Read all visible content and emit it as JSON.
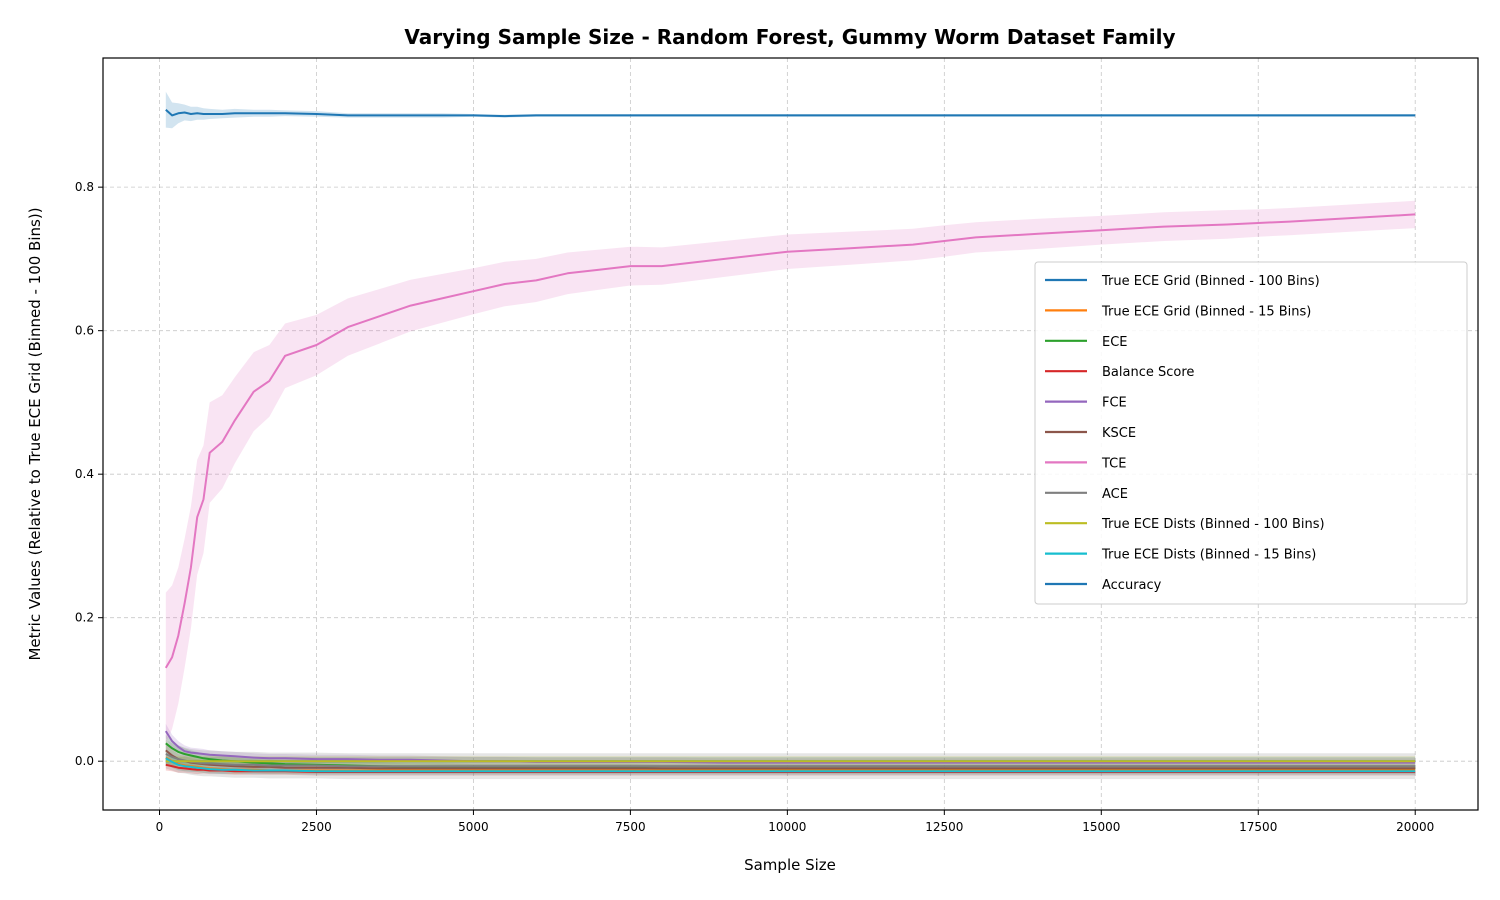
{
  "chart_data": {
    "type": "line",
    "title": "Varying Sample Size - Random Forest, Gummy Worm Dataset Family",
    "xlabel": "Sample Size",
    "ylabel": "Metric Values (Relative to True ECE Grid (Binned - 100 Bins))",
    "xlim": [
      -900,
      21000
    ],
    "ylim": [
      -0.068,
      0.98
    ],
    "xticks": [
      0,
      2500,
      5000,
      7500,
      10000,
      12500,
      15000,
      17500,
      20000
    ],
    "xtick_labels": [
      "0",
      "2500",
      "5000",
      "7500",
      "10000",
      "12500",
      "15000",
      "17500",
      "20000"
    ],
    "yticks": [
      0.0,
      0.2,
      0.4,
      0.6,
      0.8
    ],
    "ytick_labels": [
      "0.0",
      "0.2",
      "0.4",
      "0.6",
      "0.8"
    ],
    "grid": true,
    "legend_position": "center-right",
    "x": [
      100,
      200,
      300,
      400,
      500,
      600,
      700,
      800,
      1000,
      1200,
      1500,
      1750,
      2000,
      2500,
      3000,
      3500,
      4000,
      4500,
      5000,
      5500,
      6000,
      6500,
      7000,
      7500,
      8000,
      9000,
      10000,
      11000,
      12000,
      12500,
      13000,
      14000,
      15000,
      16000,
      17000,
      17500,
      18000,
      19000,
      20000
    ],
    "series": [
      {
        "name": "True ECE Grid (Binned - 100 Bins)",
        "color": "#1f77b4",
        "values": [
          0,
          0,
          0,
          0,
          0,
          0,
          0,
          0,
          0,
          0,
          0,
          0,
          0,
          0,
          0,
          0,
          0,
          0,
          0,
          0,
          0,
          0,
          0,
          0,
          0,
          0,
          0,
          0,
          0,
          0,
          0,
          0,
          0,
          0,
          0,
          0,
          0,
          0,
          0
        ],
        "band": [
          0.006,
          0.006,
          0.006,
          0.006,
          0.006,
          0.006,
          0.006,
          0.006,
          0.006,
          0.006,
          0.006,
          0.006,
          0.006,
          0.006,
          0.006,
          0.006,
          0.006,
          0.006,
          0.006,
          0.006,
          0.006,
          0.006,
          0.006,
          0.006,
          0.006,
          0.006,
          0.006,
          0.006,
          0.006,
          0.006,
          0.006,
          0.006,
          0.006,
          0.006,
          0.006,
          0.006,
          0.006,
          0.006,
          0.006
        ]
      },
      {
        "name": "True ECE Grid (Binned - 15 Bins)",
        "color": "#ff7f0e",
        "values": [
          0.005,
          0.0,
          -0.004,
          -0.006,
          -0.007,
          -0.008,
          -0.009,
          -0.01,
          -0.011,
          -0.012,
          -0.012,
          -0.013,
          -0.013,
          -0.013,
          -0.013,
          -0.013,
          -0.013,
          -0.013,
          -0.013,
          -0.013,
          -0.013,
          -0.013,
          -0.013,
          -0.013,
          -0.013,
          -0.013,
          -0.013,
          -0.013,
          -0.013,
          -0.013,
          -0.013,
          -0.013,
          -0.013,
          -0.013,
          -0.013,
          -0.013,
          -0.013,
          -0.013,
          -0.013
        ],
        "band": [
          0.01,
          0.009,
          0.008,
          0.008,
          0.007,
          0.007,
          0.007,
          0.006,
          0.006,
          0.006,
          0.005,
          0.005,
          0.005,
          0.005,
          0.005,
          0.005,
          0.005,
          0.005,
          0.005,
          0.005,
          0.005,
          0.005,
          0.005,
          0.005,
          0.005,
          0.005,
          0.005,
          0.005,
          0.005,
          0.005,
          0.005,
          0.005,
          0.005,
          0.005,
          0.005,
          0.005,
          0.005,
          0.005,
          0.005
        ]
      },
      {
        "name": "ECE",
        "color": "#2ca02c",
        "values": [
          0.025,
          0.018,
          0.013,
          0.01,
          0.008,
          0.006,
          0.004,
          0.003,
          0.001,
          0.0,
          -0.002,
          -0.003,
          -0.004,
          -0.005,
          -0.006,
          -0.007,
          -0.008,
          -0.008,
          -0.009,
          -0.009,
          -0.009,
          -0.009,
          -0.009,
          -0.009,
          -0.01,
          -0.01,
          -0.01,
          -0.01,
          -0.01,
          -0.01,
          -0.01,
          -0.01,
          -0.01,
          -0.01,
          -0.01,
          -0.01,
          -0.01,
          -0.01,
          -0.01
        ],
        "band": [
          0.012,
          0.01,
          0.009,
          0.008,
          0.007,
          0.007,
          0.006,
          0.006,
          0.006,
          0.005,
          0.005,
          0.005,
          0.005,
          0.005,
          0.005,
          0.005,
          0.005,
          0.005,
          0.005,
          0.005,
          0.005,
          0.005,
          0.005,
          0.005,
          0.005,
          0.005,
          0.005,
          0.005,
          0.005,
          0.005,
          0.005,
          0.005,
          0.005,
          0.005,
          0.005,
          0.005,
          0.005,
          0.005,
          0.005
        ]
      },
      {
        "name": "Balance Score",
        "color": "#d62728",
        "values": [
          -0.005,
          -0.007,
          -0.009,
          -0.01,
          -0.011,
          -0.012,
          -0.012,
          -0.013,
          -0.013,
          -0.014,
          -0.014,
          -0.014,
          -0.014,
          -0.015,
          -0.015,
          -0.015,
          -0.015,
          -0.015,
          -0.015,
          -0.015,
          -0.015,
          -0.015,
          -0.015,
          -0.015,
          -0.015,
          -0.015,
          -0.015,
          -0.015,
          -0.015,
          -0.015,
          -0.015,
          -0.015,
          -0.015,
          -0.015,
          -0.015,
          -0.015,
          -0.015,
          -0.015,
          -0.015
        ],
        "band": [
          0.008,
          0.007,
          0.007,
          0.006,
          0.006,
          0.006,
          0.005,
          0.005,
          0.005,
          0.005,
          0.005,
          0.005,
          0.005,
          0.005,
          0.005,
          0.005,
          0.005,
          0.005,
          0.005,
          0.005,
          0.005,
          0.005,
          0.005,
          0.005,
          0.005,
          0.005,
          0.005,
          0.005,
          0.005,
          0.005,
          0.005,
          0.005,
          0.005,
          0.005,
          0.005,
          0.005,
          0.005,
          0.005,
          0.005
        ]
      },
      {
        "name": "FCE",
        "color": "#9467bd",
        "values": [
          0.042,
          0.028,
          0.02,
          0.014,
          0.012,
          0.011,
          0.01,
          0.009,
          0.008,
          0.007,
          0.005,
          0.004,
          0.004,
          0.003,
          0.003,
          0.002,
          0.002,
          0.001,
          0.0,
          0.0,
          -0.001,
          -0.001,
          -0.001,
          -0.001,
          -0.001,
          -0.002,
          -0.002,
          -0.002,
          -0.002,
          -0.002,
          -0.002,
          -0.002,
          -0.002,
          -0.002,
          -0.002,
          -0.002,
          -0.002,
          -0.002,
          -0.002
        ],
        "band": [
          0.01,
          0.009,
          0.008,
          0.008,
          0.007,
          0.007,
          0.007,
          0.006,
          0.006,
          0.006,
          0.006,
          0.006,
          0.006,
          0.006,
          0.006,
          0.006,
          0.006,
          0.006,
          0.006,
          0.006,
          0.006,
          0.006,
          0.006,
          0.006,
          0.006,
          0.006,
          0.006,
          0.006,
          0.006,
          0.006,
          0.006,
          0.006,
          0.006,
          0.006,
          0.006,
          0.006,
          0.006,
          0.006,
          0.006
        ]
      },
      {
        "name": "KSCE",
        "color": "#8c564b",
        "values": [
          0.015,
          0.008,
          0.003,
          0.0,
          -0.002,
          -0.003,
          -0.004,
          -0.005,
          -0.006,
          -0.007,
          -0.008,
          -0.008,
          -0.009,
          -0.009,
          -0.009,
          -0.01,
          -0.01,
          -0.01,
          -0.01,
          -0.01,
          -0.01,
          -0.01,
          -0.01,
          -0.01,
          -0.01,
          -0.01,
          -0.01,
          -0.01,
          -0.01,
          -0.01,
          -0.01,
          -0.01,
          -0.01,
          -0.01,
          -0.01,
          -0.01,
          -0.01,
          -0.01,
          -0.01
        ],
        "band": [
          0.009,
          0.008,
          0.007,
          0.007,
          0.006,
          0.006,
          0.006,
          0.005,
          0.005,
          0.005,
          0.005,
          0.005,
          0.005,
          0.005,
          0.005,
          0.005,
          0.005,
          0.005,
          0.005,
          0.005,
          0.005,
          0.005,
          0.005,
          0.005,
          0.005,
          0.005,
          0.005,
          0.005,
          0.005,
          0.005,
          0.005,
          0.005,
          0.005,
          0.005,
          0.005,
          0.005,
          0.005,
          0.005,
          0.005
        ]
      },
      {
        "name": "TCE",
        "color": "#e377c2",
        "values": [
          0.13,
          0.145,
          0.175,
          0.22,
          0.27,
          0.34,
          0.365,
          0.43,
          0.445,
          0.475,
          0.515,
          0.53,
          0.565,
          0.58,
          0.605,
          0.62,
          0.635,
          0.645,
          0.655,
          0.665,
          0.67,
          0.68,
          0.685,
          0.69,
          0.69,
          0.7,
          0.71,
          0.715,
          0.72,
          0.725,
          0.73,
          0.735,
          0.74,
          0.745,
          0.748,
          0.75,
          0.752,
          0.757,
          0.762
        ],
        "band": [
          0.105,
          0.1,
          0.095,
          0.09,
          0.085,
          0.08,
          0.075,
          0.07,
          0.065,
          0.06,
          0.055,
          0.05,
          0.045,
          0.042,
          0.04,
          0.038,
          0.036,
          0.034,
          0.032,
          0.031,
          0.03,
          0.029,
          0.028,
          0.027,
          0.026,
          0.025,
          0.024,
          0.023,
          0.022,
          0.022,
          0.021,
          0.021,
          0.02,
          0.02,
          0.02,
          0.019,
          0.019,
          0.019,
          0.019
        ]
      },
      {
        "name": "ACE",
        "color": "#7f7f7f",
        "values": [
          0.01,
          0.006,
          0.003,
          0.001,
          -0.001,
          -0.002,
          -0.003,
          -0.003,
          -0.004,
          -0.005,
          -0.005,
          -0.006,
          -0.006,
          -0.006,
          -0.007,
          -0.007,
          -0.007,
          -0.007,
          -0.007,
          -0.007,
          -0.007,
          -0.007,
          -0.007,
          -0.007,
          -0.007,
          -0.007,
          -0.007,
          -0.007,
          -0.007,
          -0.007,
          -0.007,
          -0.007,
          -0.007,
          -0.007,
          -0.007,
          -0.007,
          -0.007,
          -0.007,
          -0.007
        ],
        "band": [
          0.02,
          0.019,
          0.019,
          0.018,
          0.018,
          0.018,
          0.018,
          0.018,
          0.018,
          0.018,
          0.018,
          0.018,
          0.018,
          0.018,
          0.018,
          0.018,
          0.018,
          0.018,
          0.018,
          0.018,
          0.018,
          0.018,
          0.018,
          0.018,
          0.018,
          0.018,
          0.018,
          0.018,
          0.018,
          0.018,
          0.018,
          0.018,
          0.018,
          0.018,
          0.018,
          0.018,
          0.018,
          0.018,
          0.018
        ]
      },
      {
        "name": "True ECE Dists (Binned - 100 Bins)",
        "color": "#bcbd22",
        "values": [
          0,
          0,
          0,
          0,
          0,
          0,
          0,
          0,
          0,
          0,
          0,
          0,
          0,
          0,
          0,
          0,
          0,
          0,
          0,
          0,
          0,
          0,
          0,
          0,
          0,
          0,
          0,
          0,
          0,
          0,
          0,
          0,
          0,
          0,
          0,
          0,
          0,
          0,
          0
        ],
        "band": [
          0.007,
          0.007,
          0.007,
          0.007,
          0.007,
          0.007,
          0.007,
          0.007,
          0.007,
          0.007,
          0.007,
          0.007,
          0.007,
          0.007,
          0.007,
          0.007,
          0.007,
          0.007,
          0.007,
          0.007,
          0.007,
          0.007,
          0.007,
          0.007,
          0.007,
          0.007,
          0.007,
          0.007,
          0.007,
          0.007,
          0.007,
          0.007,
          0.007,
          0.007,
          0.007,
          0.007,
          0.007,
          0.007,
          0.007
        ]
      },
      {
        "name": "True ECE Dists (Binned - 15 Bins)",
        "color": "#17becf",
        "values": [
          0.004,
          -0.001,
          -0.005,
          -0.007,
          -0.008,
          -0.009,
          -0.01,
          -0.011,
          -0.012,
          -0.012,
          -0.013,
          -0.013,
          -0.013,
          -0.014,
          -0.014,
          -0.014,
          -0.014,
          -0.014,
          -0.014,
          -0.014,
          -0.014,
          -0.014,
          -0.014,
          -0.014,
          -0.014,
          -0.014,
          -0.014,
          -0.014,
          -0.014,
          -0.014,
          -0.014,
          -0.014,
          -0.014,
          -0.014,
          -0.014,
          -0.014,
          -0.014,
          -0.014,
          -0.014
        ],
        "band": [
          0.009,
          0.008,
          0.008,
          0.007,
          0.007,
          0.006,
          0.006,
          0.006,
          0.006,
          0.005,
          0.005,
          0.005,
          0.005,
          0.005,
          0.005,
          0.005,
          0.005,
          0.005,
          0.005,
          0.005,
          0.005,
          0.005,
          0.005,
          0.005,
          0.005,
          0.005,
          0.005,
          0.005,
          0.005,
          0.005,
          0.005,
          0.005,
          0.005,
          0.005,
          0.005,
          0.005,
          0.005,
          0.005,
          0.005
        ]
      },
      {
        "name": "Accuracy",
        "color": "#1f77b4",
        "values": [
          0.908,
          0.9,
          0.903,
          0.904,
          0.902,
          0.903,
          0.902,
          0.902,
          0.902,
          0.903,
          0.903,
          0.903,
          0.903,
          0.902,
          0.9,
          0.9,
          0.9,
          0.9,
          0.9,
          0.899,
          0.9,
          0.9,
          0.9,
          0.9,
          0.9,
          0.9,
          0.9,
          0.9,
          0.9,
          0.9,
          0.9,
          0.9,
          0.9,
          0.9,
          0.9,
          0.9,
          0.9,
          0.9,
          0.9
        ],
        "band": [
          0.025,
          0.018,
          0.014,
          0.011,
          0.01,
          0.009,
          0.008,
          0.007,
          0.006,
          0.006,
          0.005,
          0.005,
          0.004,
          0.004,
          0.003,
          0.003,
          0.003,
          0.003,
          0.002,
          0.002,
          0.002,
          0.002,
          0.002,
          0.002,
          0.002,
          0.002,
          0.002,
          0.002,
          0.002,
          0.002,
          0.002,
          0.002,
          0.002,
          0.002,
          0.002,
          0.002,
          0.002,
          0.002,
          0.002
        ]
      }
    ]
  }
}
